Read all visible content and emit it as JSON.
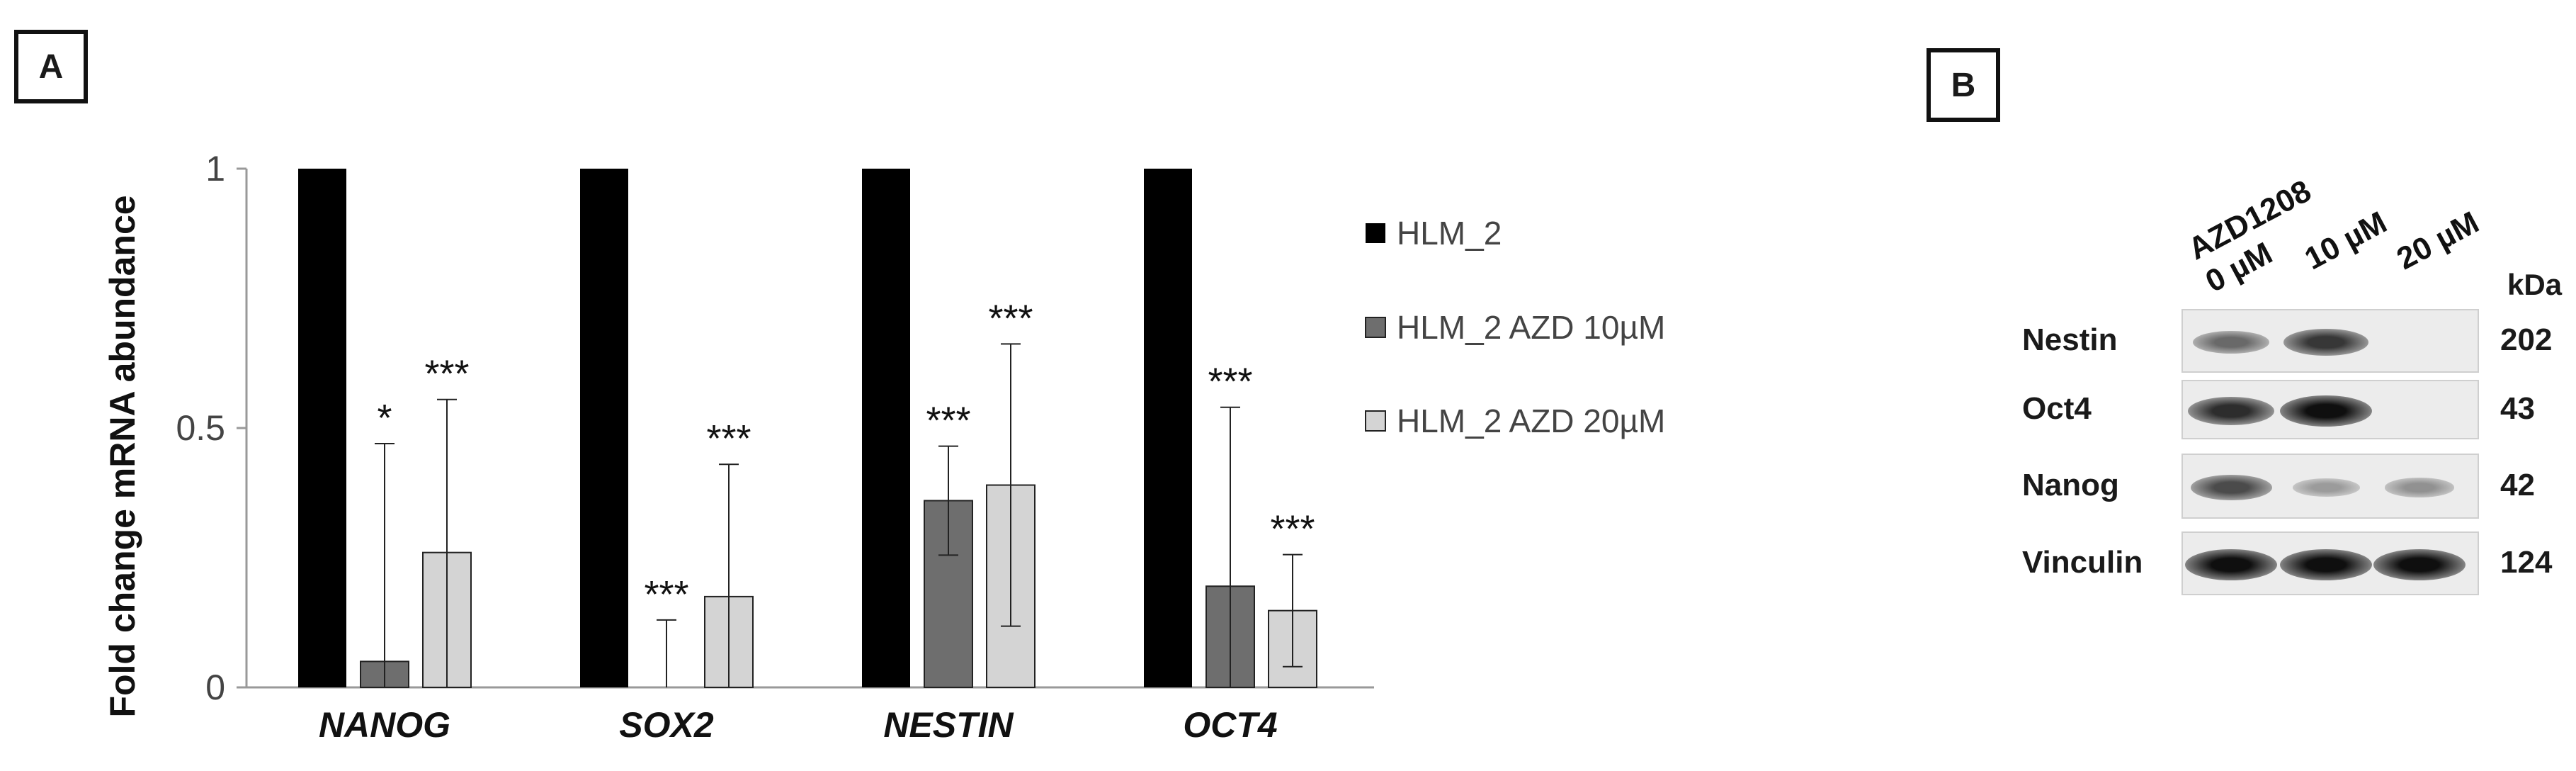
{
  "panel_a_label": "A",
  "panel_b_label": "B",
  "chart_data": {
    "type": "bar",
    "ylabel": "Fold change mRNA abundance",
    "ylim": [
      0,
      1
    ],
    "yticks": [
      "0",
      "0.5",
      "1"
    ],
    "categories": [
      "NANOG",
      "SOX2",
      "NESTIN",
      "OCT4"
    ],
    "series": [
      {
        "name": "HLM_2",
        "color": "#000000",
        "values": [
          1,
          1,
          1,
          1
        ],
        "errors": [
          0,
          0,
          0,
          0
        ],
        "significance": [
          "",
          "",
          "",
          ""
        ]
      },
      {
        "name": "HLM_2 AZD 10µM",
        "color": "#6e6e6e",
        "values": [
          0.05,
          0.0,
          0.36,
          0.195
        ],
        "errors": [
          0.42,
          0.13,
          0.105,
          0.345
        ],
        "significance": [
          "*",
          "***",
          "***",
          "***"
        ]
      },
      {
        "name": "HLM_2 AZD 20µM",
        "color": "#d4d4d4",
        "values": [
          0.26,
          0.175,
          0.39,
          0.148
        ],
        "errors": [
          0.295,
          0.255,
          0.272,
          0.108
        ],
        "significance": [
          "***",
          "***",
          "***",
          "***"
        ]
      }
    ],
    "legend_position": "right"
  },
  "blot": {
    "lanes": [
      {
        "lines": [
          "AZD1208",
          "0 µM"
        ]
      },
      {
        "lines": [
          "10 µM"
        ]
      },
      {
        "lines": [
          "20 µM"
        ]
      }
    ],
    "mw_unit": "kDa",
    "rows": [
      {
        "protein": "Nestin",
        "mw": "202",
        "intensity": [
          0.55,
          0.8,
          0.0
        ]
      },
      {
        "protein": "Oct4",
        "mw": "43",
        "intensity": [
          0.85,
          1.0,
          0.0
        ]
      },
      {
        "protein": "Nanog",
        "mw": "42",
        "intensity": [
          0.7,
          0.3,
          0.35
        ]
      },
      {
        "protein": "Vinculin",
        "mw": "124",
        "intensity": [
          1.0,
          1.0,
          1.0
        ]
      }
    ]
  }
}
